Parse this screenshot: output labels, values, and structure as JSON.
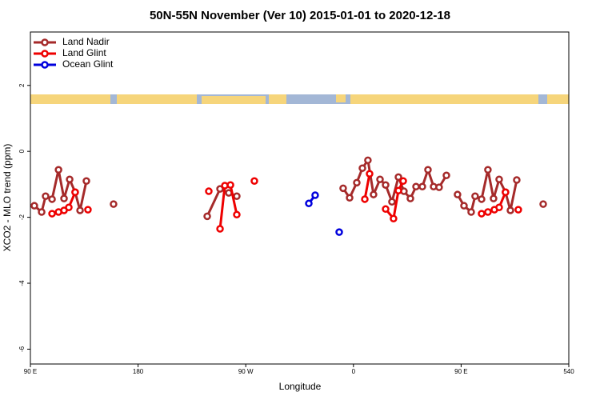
{
  "chart_data": {
    "type": "line",
    "title": "50N-55N November (Ver 10)   2015-01-01 to 2020-12-18",
    "x_label": "Longitude",
    "y_label": "XCO2 - MLO trend (ppm)",
    "xlim": [
      90,
      540
    ],
    "xticks": [
      {
        "value": 90,
        "label": "90 E"
      },
      180,
      {
        "value": 270,
        "label": "90 W"
      },
      {
        "value": 360,
        "label": "0"
      },
      {
        "value": 450,
        "label": "90 E"
      },
      540
    ],
    "ylim": [
      -6.45,
      3.62
    ],
    "yticks": [
      -6,
      -4,
      -2,
      0,
      2
    ],
    "legend": "top-left",
    "series": [
      {
        "name": "Land Nadir",
        "color": "#a52a2a",
        "x": [
          93.3,
          99.4,
          102.7,
          108.1,
          113.5,
          118.1,
          122.8,
          127.4,
          131.5,
          136.8,
          null,
          159.5,
          null,
          237.8,
          248.5,
          255.8,
          262.5,
          null,
          351.4,
          356.8,
          362.8,
          367.5,
          372.1,
          376.8,
          382.2,
          386.9,
          392.2,
          397.6,
          402.2,
          407.6,
          412.3,
          417.6,
          422.3,
          427.0,
          431.6,
          437.7,
          null,
          447.0,
          452.4,
          458.4,
          461.7,
          467.1,
          472.4,
          477.1,
          481.8,
          487.1,
          491.2,
          496.5,
          null,
          518.6
        ],
        "values": [
          -1.65,
          -1.84,
          -1.36,
          -1.45,
          -0.56,
          -1.43,
          -0.85,
          -1.24,
          -1.79,
          -0.9,
          null,
          -1.6,
          null,
          -1.97,
          -1.14,
          -1.26,
          -1.36,
          null,
          -1.12,
          -1.41,
          -0.95,
          -0.51,
          -0.27,
          -1.31,
          -0.85,
          -1.02,
          -1.53,
          -0.78,
          -1.21,
          -1.43,
          -1.07,
          -1.07,
          -0.56,
          -1.07,
          -1.09,
          -0.73,
          null,
          -1.31,
          -1.65,
          -1.84,
          -1.36,
          -1.45,
          -0.56,
          -1.43,
          -0.85,
          -1.24,
          -1.79,
          -0.87,
          null,
          -1.6
        ]
      },
      {
        "name": "Land Glint",
        "color": "#ee0000",
        "x": [
          108.1,
          113.5,
          118.1,
          122.1,
          127.4,
          null,
          138.1,
          null,
          239.1,
          null,
          248.5,
          252.5,
          257.2,
          262.5,
          null,
          277.2,
          null,
          369.5,
          373.5,
          null,
          386.9,
          393.5,
          397.6,
          401.6,
          null,
          467.1,
          472.4,
          477.8,
          481.8,
          487.1,
          null,
          497.8
        ],
        "values": [
          -1.89,
          -1.84,
          -1.79,
          -1.7,
          -1.24,
          null,
          -1.77,
          null,
          -1.21,
          null,
          -2.35,
          -1.04,
          -1.02,
          -1.92,
          null,
          -0.9,
          null,
          -1.45,
          -0.68,
          null,
          -1.75,
          -2.04,
          -1.19,
          -0.9,
          null,
          -1.89,
          -1.84,
          -1.77,
          -1.7,
          -1.24,
          null,
          -1.77
        ]
      },
      {
        "name": "Ocean Glint",
        "color": "#0000dd",
        "x": [
          322.7,
          328.0,
          null,
          348.1
        ],
        "values": [
          -1.58,
          -1.33,
          null,
          -2.45
        ]
      }
    ]
  }
}
